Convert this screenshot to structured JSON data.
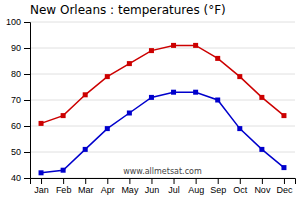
{
  "chart_data": {
    "type": "line",
    "title": "New Orleans : temperatures (°F)",
    "categories": [
      "Jan",
      "Feb",
      "Mar",
      "Apr",
      "May",
      "Jun",
      "Jul",
      "Aug",
      "Sep",
      "Oct",
      "Nov",
      "Dec"
    ],
    "series": [
      {
        "color": "#cc0000",
        "marker": "square",
        "values": [
          61,
          64,
          72,
          79,
          84,
          89,
          91,
          91,
          86,
          79,
          71,
          64
        ]
      },
      {
        "color": "#0000cc",
        "marker": "square",
        "values": [
          42,
          43,
          51,
          59,
          65,
          71,
          73,
          73,
          70,
          59,
          51,
          44
        ]
      }
    ],
    "ylim": [
      40,
      100
    ],
    "yticks": [
      40,
      50,
      60,
      70,
      80,
      90,
      100
    ],
    "grid": true,
    "annotations": [
      "www.allmetsat.com"
    ]
  }
}
